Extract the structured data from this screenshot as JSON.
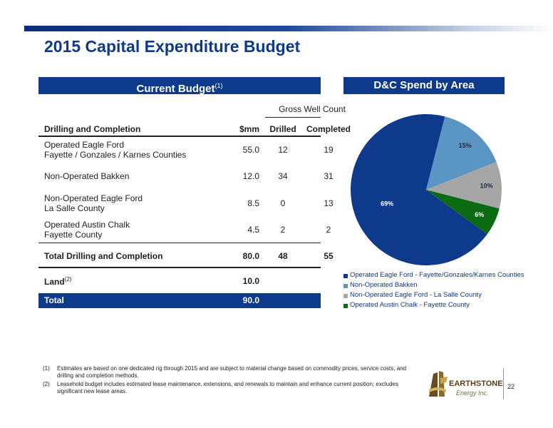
{
  "title": "2015 Capital Expenditure Budget",
  "budget_header": {
    "label": "Current Budget",
    "sup": "(1)"
  },
  "spend_header": "D&C Spend by Area",
  "table": {
    "group_header": "Gross Well Count",
    "col_headers": {
      "name": "Drilling and Completion",
      "mm": "$mm",
      "drilled": "Drilled",
      "completed": "Completed"
    },
    "rows": [
      {
        "line1": "Operated Eagle Ford",
        "line2": "Fayette / Gonzales / Karnes Counties",
        "mm": "55.0",
        "drilled": "12",
        "completed": "19"
      },
      {
        "line1": "Non-Operated Bakken",
        "line2": "",
        "mm": "12.0",
        "drilled": "34",
        "completed": "31"
      },
      {
        "line1": "Non-Operated Eagle Ford",
        "line2": "La Salle County",
        "mm": "8.5",
        "drilled": "0",
        "completed": "13"
      },
      {
        "line1": "Operated Austin Chalk",
        "line2": "Fayette County",
        "mm": "4.5",
        "drilled": "2",
        "completed": "2"
      }
    ],
    "subtotal": {
      "name": "Total Drilling and Completion",
      "mm": "80.0",
      "drilled": "48",
      "completed": "55"
    },
    "land": {
      "name": "Land",
      "sup": "(2)",
      "mm": "10.0"
    },
    "total": {
      "name": "Total",
      "mm": "90.0"
    }
  },
  "chart_data": {
    "type": "pie",
    "labels": [
      "Operated Eagle Ford - Fayette/Gonzales/Karnes Counties",
      "Non-Operated Bakken",
      "Non-Operated Eagle Ford - La Salle County",
      "Operated Austin Chalk - Fayette County"
    ],
    "values": [
      69,
      15,
      10,
      6
    ],
    "data_labels": [
      "69%",
      "15%",
      "10%",
      "6%"
    ],
    "colors": [
      "#0e3a8c",
      "#5b95c4",
      "#a6a6a6",
      "#0a6b12"
    ],
    "legend_position": "bottom"
  },
  "footnotes": [
    {
      "num": "(1)",
      "text": "Estimates are based on one dedicated rig through 2015 and are subject to material change based on commodity prices, service costs, and drilling and completion methods."
    },
    {
      "num": "(2)",
      "text": "Leasehold budget includes estimated lease maintenance, extensions, and renewals to maintain and enhance current position; excludes significant new lease areas."
    }
  ],
  "logo": {
    "name": "EARTHSTONE",
    "sub": "Energy Inc."
  },
  "page_number": "22"
}
